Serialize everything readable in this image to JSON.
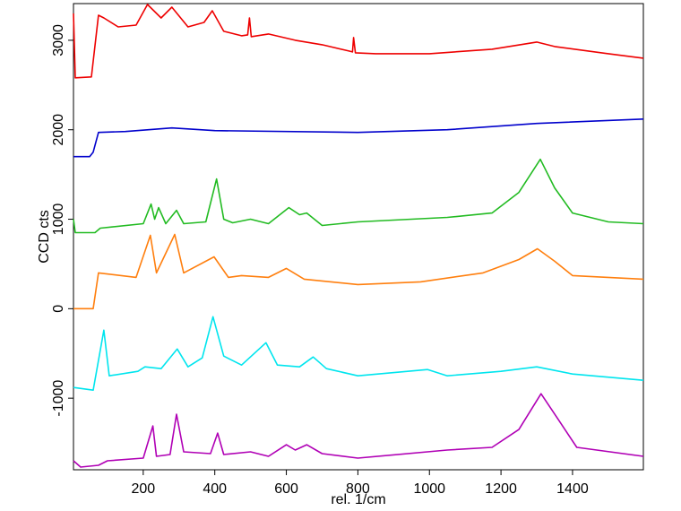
{
  "chart_data": {
    "type": "line",
    "xlabel": "rel. 1/cm",
    "ylabel": "CCD cts",
    "xlim": [
      5,
      1598
    ],
    "ylim": [
      -1800,
      3410
    ],
    "xticks": [
      200,
      400,
      600,
      800,
      1000,
      1200,
      1400
    ],
    "yticks": [
      -1000,
      0,
      1000,
      2000,
      3000
    ],
    "series": [
      {
        "color": "#ee0000",
        "x": [
          5,
          10,
          55,
          75,
          90,
          130,
          180,
          212,
          250,
          280,
          325,
          370,
          393,
          425,
          475,
          492,
          497,
          502,
          550,
          625,
          700,
          775,
          785,
          788,
          793,
          850,
          1000,
          1175,
          1300,
          1350,
          1500,
          1598
        ],
        "values": [
          3300,
          2580,
          2590,
          3280,
          3250,
          3150,
          3170,
          3400,
          3250,
          3370,
          3150,
          3200,
          3330,
          3100,
          3050,
          3060,
          3250,
          3040,
          3070,
          3000,
          2950,
          2880,
          2870,
          3030,
          2860,
          2850,
          2850,
          2900,
          2980,
          2930,
          2850,
          2800
        ]
      },
      {
        "color": "#0000cc",
        "x": [
          5,
          50,
          60,
          75,
          150,
          280,
          400,
          800,
          1050,
          1300,
          1598
        ],
        "values": [
          1700,
          1700,
          1750,
          1970,
          1980,
          2020,
          1990,
          1970,
          2000,
          2070,
          2120
        ]
      },
      {
        "color": "#22bb22",
        "x": [
          5,
          10,
          65,
          80,
          200,
          222,
          232,
          243,
          263,
          293,
          313,
          375,
          405,
          425,
          450,
          500,
          550,
          607,
          637,
          657,
          700,
          800,
          1050,
          1175,
          1250,
          1310,
          1350,
          1400,
          1500,
          1598
        ],
        "values": [
          1000,
          850,
          850,
          900,
          950,
          1170,
          1000,
          1130,
          950,
          1100,
          950,
          970,
          1450,
          1000,
          960,
          1000,
          950,
          1130,
          1050,
          1070,
          930,
          970,
          1020,
          1070,
          1300,
          1670,
          1350,
          1070,
          970,
          950
        ]
      },
      {
        "color": "#ff7f0e",
        "x": [
          5,
          60,
          75,
          180,
          220,
          237,
          288,
          313,
          398,
          438,
          475,
          550,
          600,
          650,
          800,
          975,
          1150,
          1250,
          1302,
          1350,
          1400,
          1598
        ],
        "values": [
          0,
          0,
          400,
          350,
          820,
          400,
          830,
          400,
          580,
          350,
          370,
          350,
          450,
          330,
          270,
          300,
          400,
          550,
          670,
          530,
          370,
          330
        ]
      },
      {
        "color": "#00e5ee",
        "x": [
          5,
          60,
          90,
          105,
          185,
          205,
          250,
          295,
          325,
          365,
          395,
          425,
          475,
          543,
          575,
          637,
          675,
          712,
          800,
          995,
          1050,
          1200,
          1300,
          1400,
          1598
        ],
        "values": [
          -880,
          -910,
          -240,
          -750,
          -700,
          -650,
          -670,
          -450,
          -650,
          -550,
          -90,
          -530,
          -630,
          -380,
          -630,
          -650,
          -540,
          -670,
          -750,
          -680,
          -750,
          -700,
          -650,
          -730,
          -800
        ]
      },
      {
        "color": "#b000b5",
        "x": [
          5,
          25,
          75,
          100,
          200,
          227,
          237,
          275,
          293,
          313,
          388,
          408,
          425,
          500,
          550,
          600,
          625,
          657,
          700,
          800,
          1050,
          1175,
          1250,
          1312,
          1362,
          1412,
          1598
        ],
        "values": [
          -1700,
          -1770,
          -1750,
          -1700,
          -1670,
          -1310,
          -1650,
          -1630,
          -1180,
          -1600,
          -1620,
          -1390,
          -1630,
          -1600,
          -1650,
          -1520,
          -1580,
          -1520,
          -1620,
          -1670,
          -1580,
          -1550,
          -1350,
          -950,
          -1250,
          -1550,
          -1650
        ]
      }
    ]
  }
}
